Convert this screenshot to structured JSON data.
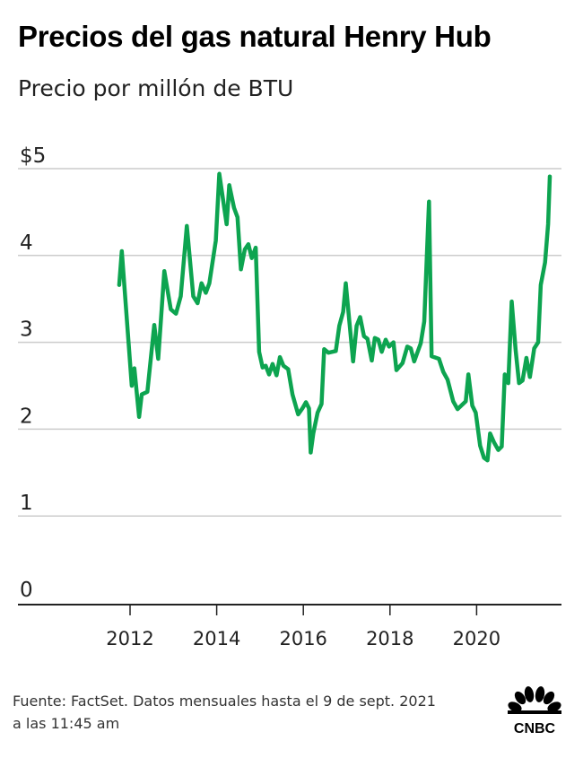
{
  "header": {
    "title": "Precios del gas natural Henry Hub",
    "subtitle": "Precio por millón de BTU"
  },
  "footer": {
    "source_line1": "Fuente: FactSet. Datos mensuales hasta el  9 de sept. 2021",
    "source_line2": "a las 11:45 am"
  },
  "logo": {
    "text": "CNBC"
  },
  "colors": {
    "line": "#0da450",
    "grid": "#cccccc",
    "axis": "#222222"
  },
  "chart_data": {
    "type": "line",
    "title": "Precios del gas natural Henry Hub",
    "subtitle": "Precio por millón de BTU",
    "xlabel": "",
    "ylabel": "",
    "xlim": [
      2011.4,
      2021.95
    ],
    "ylim": [
      0,
      5
    ],
    "grid": true,
    "y_ticks": [
      {
        "value": 0,
        "label": "0"
      },
      {
        "value": 1,
        "label": "1"
      },
      {
        "value": 2,
        "label": "2"
      },
      {
        "value": 3,
        "label": "3"
      },
      {
        "value": 4,
        "label": "4"
      },
      {
        "value": 5,
        "label": "$5"
      }
    ],
    "x_ticks": [
      {
        "value": 2012,
        "label": "2012"
      },
      {
        "value": 2014,
        "label": "2014"
      },
      {
        "value": 2016,
        "label": "2016"
      },
      {
        "value": 2018,
        "label": "2018"
      },
      {
        "value": 2020,
        "label": "2020"
      }
    ],
    "series": [
      {
        "x": [
          2011.75,
          2011.81,
          2012.04,
          2012.1,
          2012.21,
          2012.27,
          2012.4,
          2012.56,
          2012.65,
          2012.79,
          2012.94,
          2013.06,
          2013.17,
          2013.31,
          2013.46,
          2013.56,
          2013.65,
          2013.75,
          2013.83,
          2013.98,
          2014.06,
          2014.23,
          2014.29,
          2014.4,
          2014.48,
          2014.56,
          2014.65,
          2014.73,
          2014.81,
          2014.9,
          2014.98,
          2015.06,
          2015.13,
          2015.21,
          2015.29,
          2015.38,
          2015.46,
          2015.54,
          2015.65,
          2015.75,
          2015.88,
          2015.98,
          2016.06,
          2016.13,
          2016.17,
          2016.23,
          2016.33,
          2016.42,
          2016.48,
          2016.58,
          2016.75,
          2016.83,
          2016.92,
          2016.98,
          2017.15,
          2017.23,
          2017.31,
          2017.4,
          2017.48,
          2017.58,
          2017.65,
          2017.73,
          2017.81,
          2017.9,
          2017.98,
          2018.08,
          2018.15,
          2018.29,
          2018.4,
          2018.48,
          2018.56,
          2018.71,
          2018.79,
          2018.9,
          2018.96,
          2019.13,
          2019.23,
          2019.33,
          2019.46,
          2019.56,
          2019.75,
          2019.81,
          2019.9,
          2019.98,
          2020.08,
          2020.17,
          2020.25,
          2020.31,
          2020.4,
          2020.5,
          2020.58,
          2020.65,
          2020.73,
          2020.81,
          2020.9,
          2020.98,
          2021.06,
          2021.15,
          2021.23,
          2021.33,
          2021.42,
          2021.48,
          2021.58,
          2021.65,
          2021.69
        ],
        "y": [
          3.66,
          4.05,
          2.5,
          2.7,
          2.14,
          2.4,
          2.43,
          3.2,
          2.81,
          3.82,
          3.38,
          3.33,
          3.53,
          4.34,
          3.53,
          3.45,
          3.68,
          3.57,
          3.68,
          4.17,
          4.94,
          4.36,
          4.81,
          4.55,
          4.44,
          3.84,
          4.07,
          4.13,
          3.97,
          4.09,
          2.89,
          2.71,
          2.73,
          2.63,
          2.75,
          2.62,
          2.83,
          2.73,
          2.69,
          2.4,
          2.17,
          2.24,
          2.31,
          2.24,
          1.73,
          1.95,
          2.19,
          2.29,
          2.92,
          2.88,
          2.9,
          3.19,
          3.35,
          3.68,
          2.78,
          3.19,
          3.29,
          3.07,
          3.04,
          2.79,
          3.05,
          3.03,
          2.89,
          3.03,
          2.95,
          3.0,
          2.68,
          2.76,
          2.95,
          2.93,
          2.78,
          2.99,
          3.24,
          4.62,
          2.84,
          2.81,
          2.66,
          2.57,
          2.32,
          2.23,
          2.32,
          2.63,
          2.27,
          2.19,
          1.81,
          1.67,
          1.64,
          1.95,
          1.85,
          1.76,
          1.8,
          2.63,
          2.53,
          3.47,
          2.91,
          2.53,
          2.56,
          2.82,
          2.6,
          2.93,
          3.0,
          3.66,
          3.92,
          4.36,
          4.91
        ]
      }
    ]
  }
}
